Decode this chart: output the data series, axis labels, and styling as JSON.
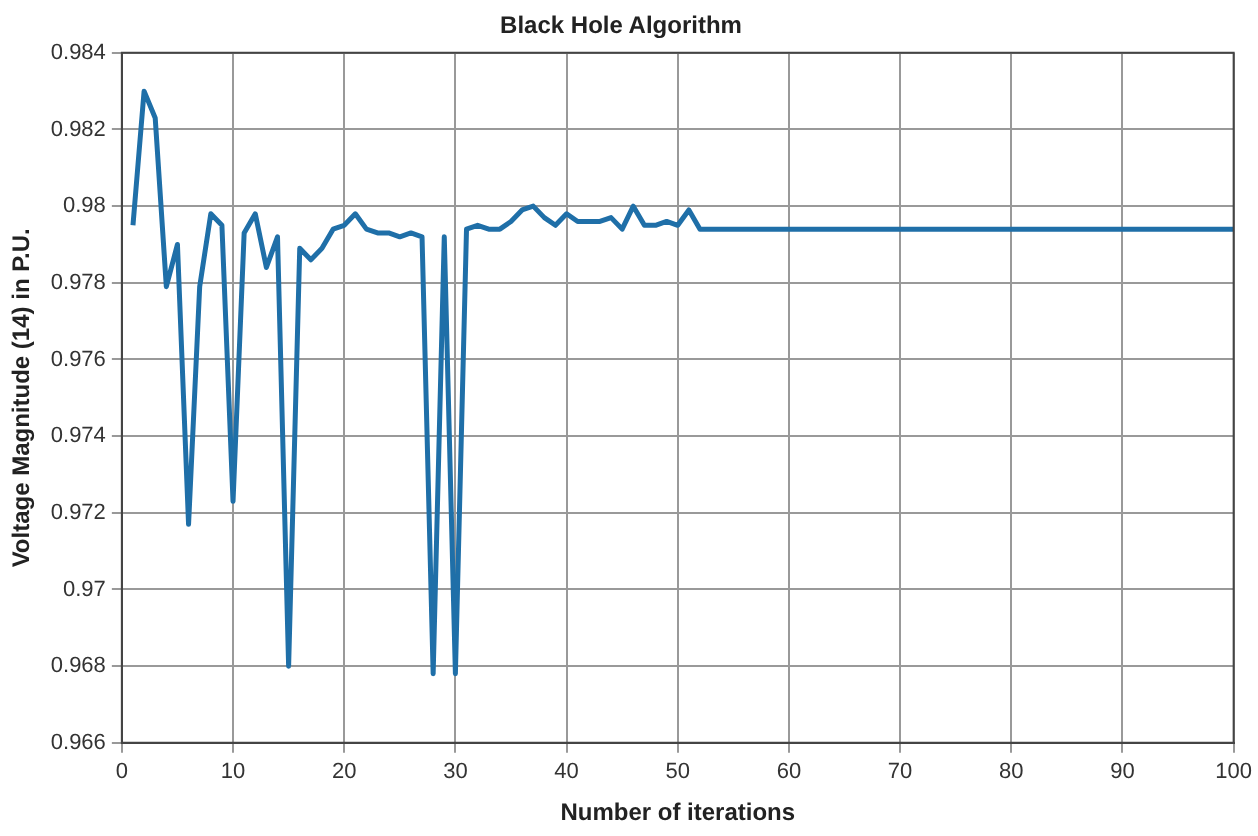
{
  "chart_data": {
    "type": "line",
    "title": "Black Hole Algorithm",
    "xlabel": "Number of iterations",
    "ylabel": "Voltage Magnitude (14) in P.U.",
    "x": [
      1,
      2,
      3,
      4,
      5,
      6,
      7,
      8,
      9,
      10,
      11,
      12,
      13,
      14,
      15,
      16,
      17,
      18,
      19,
      20,
      21,
      22,
      23,
      24,
      25,
      26,
      27,
      28,
      29,
      30,
      31,
      32,
      33,
      34,
      35,
      36,
      37,
      38,
      39,
      40,
      41,
      42,
      43,
      44,
      45,
      46,
      47,
      48,
      49,
      50,
      51,
      52,
      100
    ],
    "series": [
      {
        "color": "#1f6fa8",
        "values": [
          0.9795,
          0.983,
          0.9823,
          0.9779,
          0.979,
          0.9717,
          0.9779,
          0.9798,
          0.9795,
          0.9723,
          0.9793,
          0.9798,
          0.9784,
          0.9792,
          0.968,
          0.9789,
          0.9786,
          0.9789,
          0.9794,
          0.9795,
          0.9798,
          0.9794,
          0.9793,
          0.9793,
          0.9792,
          0.9793,
          0.9792,
          0.9678,
          0.9792,
          0.9678,
          0.9794,
          0.9795,
          0.9794,
          0.9794,
          0.9796,
          0.9799,
          0.98,
          0.9797,
          0.9795,
          0.9798,
          0.9796,
          0.9796,
          0.9796,
          0.9797,
          0.9794,
          0.98,
          0.9795,
          0.9795,
          0.9796,
          0.9795,
          0.9799,
          0.9794,
          0.9794
        ]
      }
    ],
    "xlim": [
      0,
      100
    ],
    "xticks": [
      0,
      10,
      20,
      30,
      40,
      50,
      60,
      70,
      80,
      90,
      100
    ],
    "ylim": [
      0.966,
      0.984
    ],
    "yticks": [
      {
        "value": 0.966,
        "label": "0.966"
      },
      {
        "value": 0.968,
        "label": "0.968"
      },
      0.97,
      0.972,
      0.974,
      0.976,
      0.978,
      0.98,
      0.982,
      0.984
    ],
    "grid": true,
    "legend": false,
    "marker": "none",
    "line_style": "solid"
  }
}
